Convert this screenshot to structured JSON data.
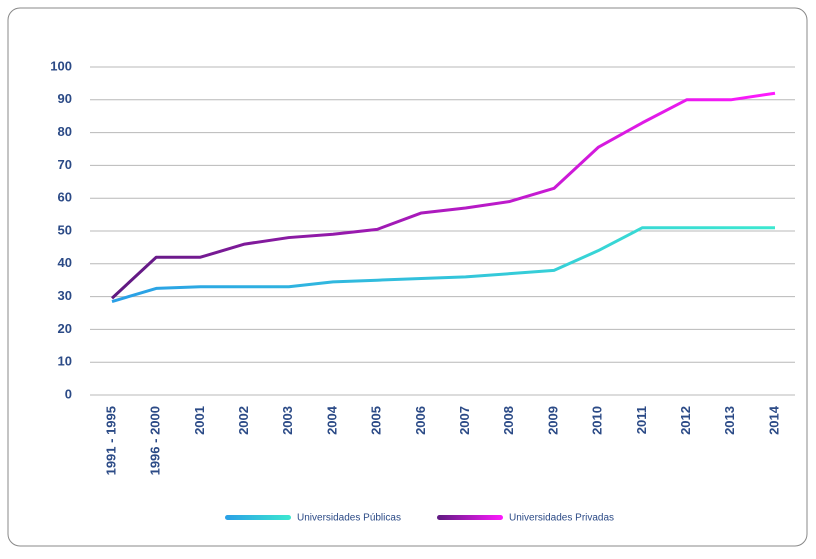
{
  "chart_data": {
    "type": "line",
    "categories": [
      "1991 - 1995",
      "1996 - 2000",
      "2001",
      "2002",
      "2003",
      "2004",
      "2005",
      "2006",
      "2007",
      "2008",
      "2009",
      "2010",
      "2011",
      "2012",
      "2013",
      "2014"
    ],
    "series": [
      {
        "name": "Universidades Públicas",
        "color": [
          "#2a9fe6",
          "#3ce8d0"
        ],
        "values": [
          28.5,
          32.5,
          33,
          33,
          33,
          34.5,
          35,
          35.5,
          36,
          37,
          38,
          44,
          51,
          51,
          51,
          51
        ]
      },
      {
        "name": "Universidades Privadas",
        "color": [
          "#5e1a80",
          "#ff1aff"
        ],
        "values": [
          29.5,
          42,
          42,
          46,
          48,
          49,
          50.5,
          55.5,
          57,
          59,
          63,
          75.5,
          83,
          90,
          90,
          92
        ]
      }
    ],
    "ylim": [
      0,
      100
    ],
    "yticks": [
      0,
      10,
      20,
      30,
      40,
      50,
      60,
      70,
      80,
      90,
      100
    ],
    "grid": true,
    "legend": "bottom"
  }
}
